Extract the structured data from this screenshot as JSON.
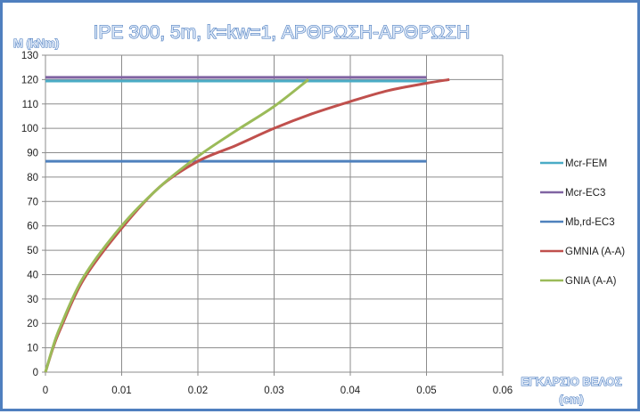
{
  "chart_data": {
    "type": "line",
    "title": "IPE 300, 5m, k=kw=1, ΑΡΘΡΩΣΗ-ΑΡΘΡΩΣΗ",
    "xlabel": "ΕΓΚΑΡΣΙΟ ΒΕΛΟΣ (cm)",
    "ylabel": "M (kNm)",
    "xlim": [
      0,
      0.06
    ],
    "ylim": [
      0,
      130
    ],
    "xticks": [
      "0",
      "0.01",
      "0.02",
      "0.03",
      "0.04",
      "0.05",
      "0.06"
    ],
    "yticks": [
      "0",
      "10",
      "20",
      "30",
      "40",
      "50",
      "60",
      "70",
      "80",
      "90",
      "100",
      "110",
      "120",
      "130"
    ],
    "grid": true,
    "legend": "right",
    "series": [
      {
        "name": "Mcr-FEM",
        "color": "#4bacc6",
        "x": [
          0,
          0.05
        ],
        "y": [
          119.4,
          119.4
        ]
      },
      {
        "name": "Mcr-EC3",
        "color": "#8064a2",
        "x": [
          0,
          0.05
        ],
        "y": [
          120.9,
          120.9
        ]
      },
      {
        "name": "Mb,rd-EC3",
        "color": "#4f81bd",
        "x": [
          0,
          0.05
        ],
        "y": [
          86.5,
          86.5
        ]
      },
      {
        "name": "GMNIA (A-A)",
        "color": "#c0504d",
        "x": [
          0,
          0.001,
          0.002,
          0.005,
          0.01,
          0.015,
          0.02,
          0.025,
          0.03,
          0.035,
          0.04,
          0.045,
          0.05,
          0.053
        ],
        "y": [
          0,
          10,
          18,
          38,
          59,
          76,
          86.5,
          93,
          100,
          106,
          111,
          115.5,
          118.5,
          120
        ]
      },
      {
        "name": "GNIA (A-A)",
        "color": "#9bbb59",
        "x": [
          0,
          0.001,
          0.002,
          0.005,
          0.01,
          0.015,
          0.02,
          0.025,
          0.03,
          0.0345
        ],
        "y": [
          0,
          10.5,
          19,
          39,
          60,
          76,
          88.5,
          99,
          109,
          120
        ]
      }
    ]
  }
}
